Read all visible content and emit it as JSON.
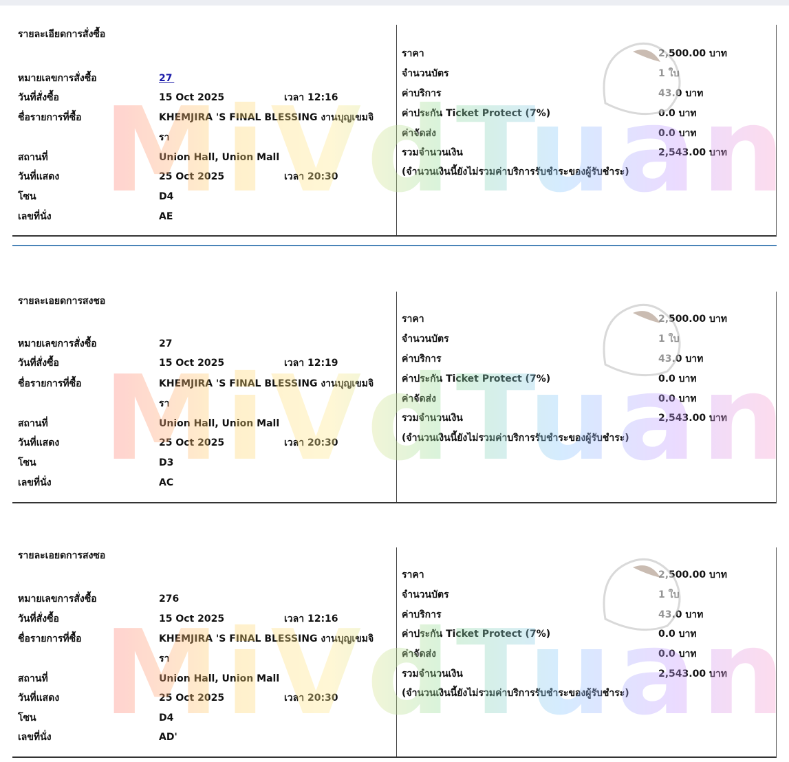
{
  "tickets": [
    {
      "header": "รายละเอียดการสั่งซื้อ",
      "order_no_label": "หมายเลขการสั่งซื้อ",
      "order_no": "27 ",
      "order_date_label": "วันที่สั่งซื้อ",
      "order_date": "15 Oct 2025",
      "order_time_label": "เวลา 12:16",
      "item_label": "ชื่อรายการที่ซื้อ",
      "item_line1": "KHEMJIRA 'S FINAL BLESSING งานบุญเขมจิ",
      "item_line2": "รา",
      "venue_label": "สถานที่",
      "venue": "Union Hall, Union Mall",
      "show_date_label": "วันที่แสดง",
      "show_date": "25 Oct 2025",
      "show_time_label": "เวลา 20:30",
      "zone_label": "โซน",
      "zone": "D4",
      "seat_label": "เลขที่นั่ง",
      "seat": "AE ",
      "price_label": "ราคา",
      "price": "2,500.00 บาท",
      "qty_label": "จำนวนบัตร",
      "qty": "1 ใบ",
      "service_label": "ค่าบริการ",
      "service": "43.0 บาท",
      "insurance_label": "ค่าประกัน Ticket Protect (7%)",
      "insurance": "0.0 บาท",
      "shipping_label": "ค่าจัดส่ง",
      "shipping": "0.0 บาท",
      "total_label": "รวมจำนวนเงิน",
      "total": "2,543.00 บาท",
      "note": "(จำนวนเงินนี้ยังไม่รวมค่าบริการรับชำระของผู้รับชำระ)"
    },
    {
      "header": "รายละเอยดการสงชอ",
      "order_no_label": "หมายเลขการสั่งซื้อ",
      "order_no": "27 ",
      "order_date_label": "วันที่สั่งซื้อ",
      "order_date": "15 Oct 2025",
      "order_time_label": "เวลา 12:19",
      "item_label": "ชื่อรายการที่ซื้อ",
      "item_line1": "KHEMJIRA 'S FINAL BLESSING งานบุญเขมจิ",
      "item_line2": "รา",
      "venue_label": "สถานที่",
      "venue": "Union Hall, Union Mall",
      "show_date_label": "วันที่แสดง",
      "show_date": "25 Oct 2025",
      "show_time_label": "เวลา 20:30",
      "zone_label": "โซน",
      "zone": "D3",
      "seat_label": "เลขที่นั่ง",
      "seat": "AC",
      "price_label": "ราคา",
      "price": "2,500.00 บาท",
      "qty_label": "จำนวนบัตร",
      "qty": "1 ใบ",
      "service_label": "ค่าบริการ",
      "service": "43.0 บาท",
      "insurance_label": "ค่าประกัน Ticket Protect (7%)",
      "insurance": "0.0 บาท",
      "shipping_label": "ค่าจัดส่ง",
      "shipping": "0.0 บาท",
      "total_label": "รวมจำนวนเงิน",
      "total": "2,543.00 บาท",
      "note": "(จำนวนเงินนี้ยังไม่รวมค่าบริการรับชำระของผู้รับชำระ)"
    },
    {
      "header": "รายละเอยดการสงซอ",
      "order_no_label": "หมายเลขการสั่งซื้อ",
      "order_no": "276",
      "order_date_label": "วันที่สั่งซื้อ",
      "order_date": "15 Oct 2025",
      "order_time_label": "เวลา 12:16",
      "item_label": "ชื่อรายการที่ซื้อ",
      "item_line1": "KHEMJIRA 'S FINAL BLESSING งานบุญเขมจิ",
      "item_line2": "รา",
      "venue_label": "สถานที่",
      "venue": "Union Hall, Union Mall",
      "show_date_label": "วันที่แสดง",
      "show_date": "25 Oct 2025",
      "show_time_label": "เวลา 20:30",
      "zone_label": "โซน",
      "zone": "D4",
      "seat_label": "เลขที่นั่ง",
      "seat": "AD'",
      "price_label": "ราคา",
      "price": "2,500.00 บาท",
      "qty_label": "จำนวนบัตร",
      "qty": "1 ใบ",
      "service_label": "ค่าบริการ",
      "service": "43.0 บาท",
      "insurance_label": "ค่าประกัน Ticket Protect (7%)",
      "insurance": "0.0 บาท",
      "shipping_label": "ค่าจัดส่ง",
      "shipping": "0.0 บาท",
      "total_label": "รวมจำนวนเงิน",
      "total": "2,543.00 บาท",
      "note": "(จำนวนเงินนี้ยังไม่รวมค่าบริการรับชำระของผู้รับชำระ)"
    }
  ],
  "watermark": {
    "text": "MiVdTuan",
    "colors": [
      "#ff7a7a",
      "#ffd36b",
      "#8fdc9a",
      "#8ac8ff",
      "#c79aff"
    ]
  }
}
